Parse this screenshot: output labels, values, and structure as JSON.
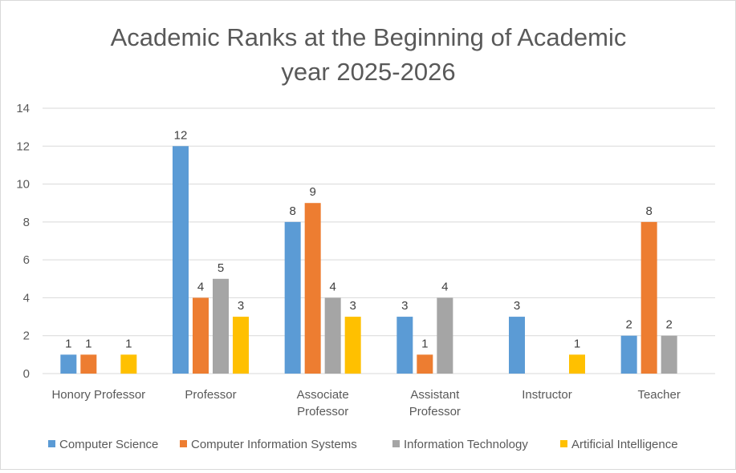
{
  "chart_data": {
    "type": "bar",
    "title": "Academic Ranks at the Beginning of Academic year 2025-2026",
    "title_lines": [
      "Academic Ranks at the Beginning of Academic",
      "year 2025-2026"
    ],
    "xlabel": "",
    "ylabel": "",
    "ylim": [
      0,
      14
    ],
    "yticks": [
      0,
      2,
      4,
      6,
      8,
      10,
      12,
      14
    ],
    "grid": true,
    "legend_position": "bottom",
    "categories": [
      "Honory Professor",
      "Professor",
      "Associate Professor",
      "Assistant Professor",
      "Instructor",
      "Teacher"
    ],
    "category_lines": [
      [
        "Honory Professor"
      ],
      [
        "Professor"
      ],
      [
        "Associate",
        "Professor"
      ],
      [
        "Assistant",
        "Professor"
      ],
      [
        "Instructor"
      ],
      [
        "Teacher"
      ]
    ],
    "series": [
      {
        "name": "Computer Science",
        "color": "#5b9bd5",
        "values": [
          1,
          12,
          8,
          3,
          3,
          2
        ]
      },
      {
        "name": "Computer Information Systems",
        "color": "#ed7d31",
        "values": [
          1,
          4,
          9,
          1,
          0,
          8
        ]
      },
      {
        "name": "Information Technology",
        "color": "#a5a5a5",
        "values": [
          0,
          5,
          4,
          4,
          0,
          2
        ]
      },
      {
        "name": "Artificial Intelligence",
        "color": "#ffc000",
        "values": [
          1,
          3,
          3,
          0,
          1,
          0
        ]
      }
    ]
  }
}
